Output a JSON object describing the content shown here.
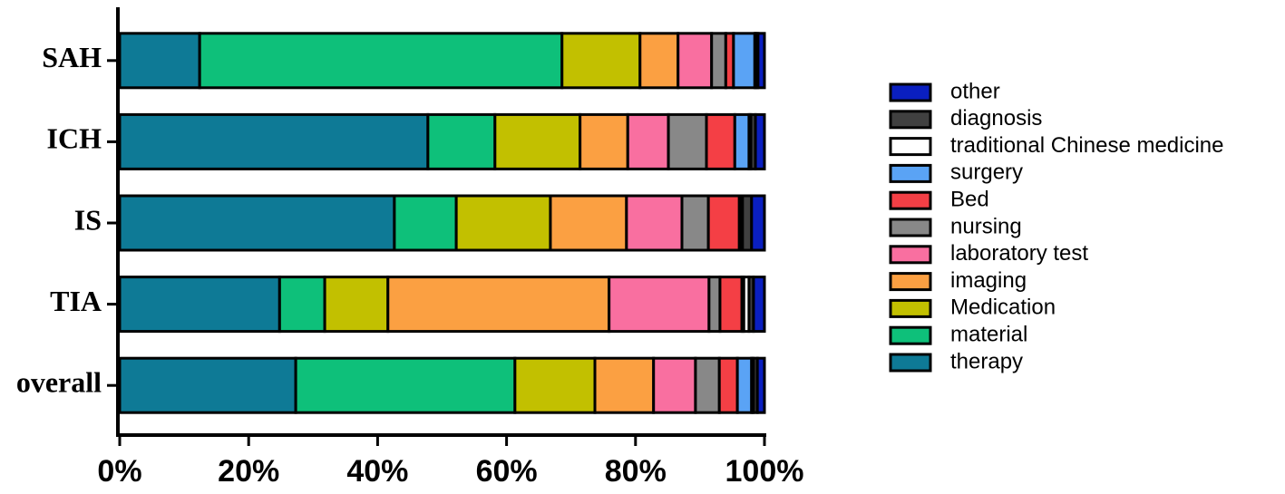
{
  "chart_data": {
    "type": "stacked-bar-horizontal",
    "categories": [
      "SAH",
      "ICH",
      "IS",
      "TIA",
      "overall"
    ],
    "series": [
      {
        "name": "therapy",
        "color": "#0e7a96",
        "values": [
          12.4,
          47.8,
          42.6,
          24.8,
          27.3
        ]
      },
      {
        "name": "material",
        "color": "#0ec07a",
        "values": [
          56.2,
          10.4,
          9.6,
          7.0,
          34.0
        ]
      },
      {
        "name": "Medication",
        "color": "#c2c000",
        "values": [
          12.1,
          13.2,
          14.6,
          9.8,
          12.4
        ]
      },
      {
        "name": "imaging",
        "color": "#fba042",
        "values": [
          5.9,
          7.4,
          11.8,
          34.3,
          9.1
        ]
      },
      {
        "name": "laboratory test",
        "color": "#f96fa0",
        "values": [
          5.2,
          6.3,
          8.6,
          15.5,
          6.5
        ]
      },
      {
        "name": "nursing",
        "color": "#888888",
        "values": [
          2.2,
          5.9,
          4.1,
          1.7,
          3.7
        ]
      },
      {
        "name": "Bed",
        "color": "#f43f45",
        "values": [
          1.2,
          4.4,
          4.8,
          3.4,
          2.8
        ]
      },
      {
        "name": "surgery",
        "color": "#5aa3f5",
        "values": [
          3.3,
          2.2,
          0.2,
          0.3,
          2.2
        ]
      },
      {
        "name": "traditional Chinese medicine",
        "color": "#ffffff",
        "values": [
          0.2,
          0.3,
          0.3,
          0.8,
          0.3
        ]
      },
      {
        "name": "diagnosis",
        "color": "#404040",
        "values": [
          0.3,
          0.7,
          1.4,
          0.7,
          0.6
        ]
      },
      {
        "name": "other",
        "color": "#0a1fc0",
        "values": [
          1.0,
          1.4,
          2.0,
          1.7,
          1.1
        ]
      }
    ],
    "xlim": [
      0,
      100
    ],
    "xticks": [
      {
        "value": 0,
        "label": "0%"
      },
      {
        "value": 20,
        "label": "20%"
      },
      {
        "value": 40,
        "label": "40%"
      },
      {
        "value": 60,
        "label": "60%"
      },
      {
        "value": 80,
        "label": "80%"
      },
      {
        "value": 100,
        "label": "100%"
      }
    ],
    "legend": "right"
  }
}
